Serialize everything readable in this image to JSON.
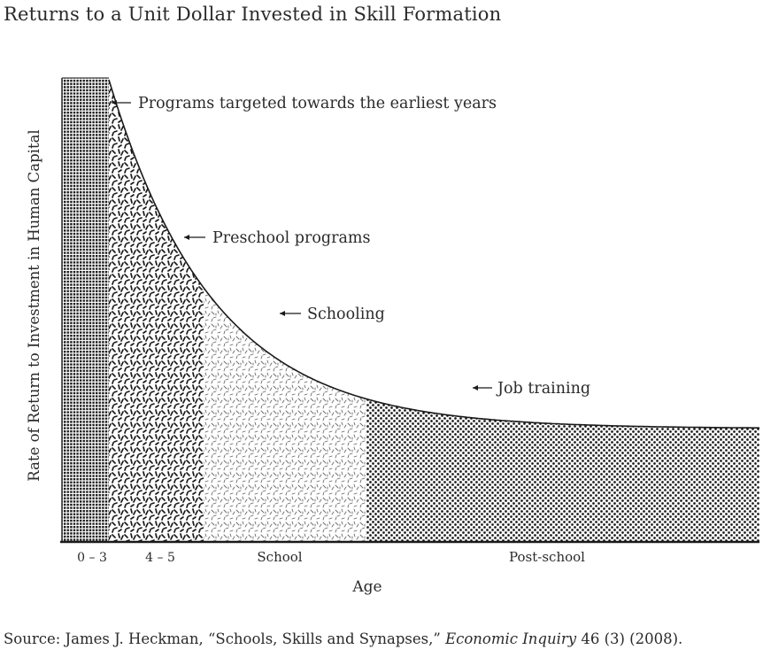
{
  "title": "Returns to a Unit Dollar Invested in Skill Formation",
  "source": {
    "prefix": "Source: James J. Heckman, “Schools, Skills and Synapses,” ",
    "journal": "Economic Inquiry",
    "suffix": " 46 (3) (2008)."
  },
  "chart_data": {
    "type": "area",
    "title": "Returns to a Unit Dollar Invested in Skill Formation",
    "xlabel": "Age",
    "ylabel": "Rate of Return to Investment in Human Capital",
    "grid": false,
    "legend": "none",
    "categories": [
      "0 – 3",
      "4 – 5",
      "School",
      "Post-school"
    ],
    "annotations": [
      "Programs targeted towards the earliest years",
      "Preschool programs",
      "Schooling",
      "Job training"
    ],
    "colors": {
      "ink": "#1a1a1a",
      "text": "#2a2a2a",
      "background": "#ffffff"
    }
  }
}
